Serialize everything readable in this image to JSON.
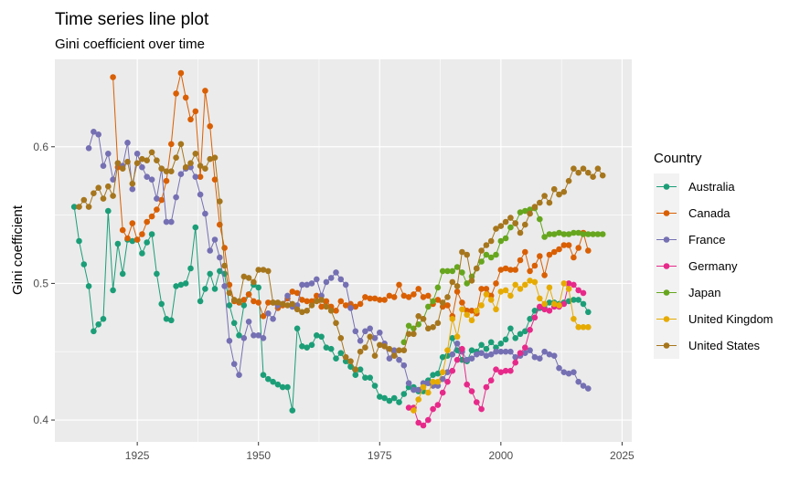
{
  "chart_data": {
    "type": "line",
    "title": "Time series line plot",
    "subtitle": "Gini coefficient over time",
    "xlabel": "",
    "ylabel": "Gini coefficient",
    "xlim": [
      1908,
      2027
    ],
    "ylim": [
      0.384,
      0.664
    ],
    "x_ticks": [
      1925,
      1950,
      1975,
      2000,
      2025
    ],
    "y_ticks": [
      0.4,
      0.5,
      0.6
    ],
    "y_tick_labels": [
      "0.4",
      "0.5",
      "0.6"
    ],
    "grid": true,
    "legend_title": "Country",
    "legend_position": "right",
    "series": [
      {
        "name": "Australia",
        "color": "#1b9e77",
        "x": [
          1912,
          1913,
          1914,
          1915,
          1916,
          1917,
          1918,
          1919,
          1920,
          1921,
          1922,
          1923,
          1924,
          1925,
          1926,
          1927,
          1928,
          1929,
          1930,
          1931,
          1932,
          1933,
          1934,
          1935,
          1936,
          1937,
          1938,
          1939,
          1940,
          1941,
          1942,
          1943,
          1944,
          1945,
          1946,
          1947,
          1948,
          1949,
          1950,
          1951,
          1952,
          1953,
          1954,
          1955,
          1956,
          1957,
          1958,
          1959,
          1960,
          1961,
          1962,
          1963,
          1964,
          1965,
          1966,
          1967,
          1968,
          1969,
          1970,
          1971,
          1972,
          1973,
          1974,
          1975,
          1976,
          1977,
          1978,
          1979,
          1980,
          1981,
          1982,
          1983,
          1984,
          1985,
          1986,
          1987,
          1988,
          1989,
          1990,
          1991,
          1992,
          1993,
          1994,
          1995,
          1996,
          1997,
          1998,
          1999,
          2000,
          2001,
          2002,
          2003,
          2004,
          2005,
          2006,
          2007,
          2008,
          2009,
          2010,
          2011,
          2012,
          2013,
          2014,
          2015,
          2016,
          2017,
          2018
        ],
        "values": [
          0.556,
          0.531,
          0.514,
          0.498,
          0.465,
          0.47,
          0.474,
          0.553,
          0.495,
          0.529,
          0.507,
          0.532,
          0.531,
          0.532,
          0.522,
          0.53,
          0.536,
          0.507,
          0.485,
          0.474,
          0.473,
          0.498,
          0.499,
          0.5,
          0.511,
          0.541,
          0.487,
          0.496,
          0.507,
          0.496,
          0.509,
          0.507,
          0.484,
          0.471,
          0.462,
          0.484,
          0.492,
          0.499,
          0.497,
          0.433,
          0.43,
          0.428,
          0.426,
          0.424,
          0.424,
          0.407,
          0.467,
          0.454,
          0.453,
          0.455,
          0.462,
          0.461,
          0.453,
          0.452,
          0.445,
          0.449,
          0.443,
          0.439,
          0.433,
          0.437,
          0.431,
          0.431,
          0.425,
          0.417,
          0.416,
          0.414,
          0.416,
          0.413,
          0.419,
          0.424,
          0.424,
          0.421,
          0.421,
          0.429,
          0.433,
          0.434,
          0.446,
          0.447,
          0.46,
          0.451,
          0.444,
          0.443,
          0.451,
          0.45,
          0.455,
          0.452,
          0.457,
          0.453,
          0.456,
          0.459,
          0.467,
          0.46,
          0.463,
          0.465,
          0.474,
          0.48,
          0.482,
          0.482,
          0.486,
          0.486,
          0.485,
          0.486,
          0.487,
          0.488,
          0.488,
          0.485,
          0.479
        ]
      },
      {
        "name": "Canada",
        "color": "#d95f02",
        "x": [
          1920,
          1921,
          1922,
          1923,
          1924,
          1925,
          1926,
          1927,
          1928,
          1929,
          1930,
          1931,
          1932,
          1933,
          1934,
          1935,
          1936,
          1937,
          1938,
          1939,
          1940,
          1941,
          1942,
          1943,
          1944,
          1945,
          1946,
          1947,
          1948,
          1949,
          1950,
          1951,
          1952,
          1953,
          1954,
          1955,
          1956,
          1957,
          1958,
          1959,
          1960,
          1961,
          1962,
          1963,
          1964,
          1965,
          1966,
          1967,
          1968,
          1969,
          1970,
          1971,
          1972,
          1973,
          1974,
          1975,
          1976,
          1977,
          1978,
          1979,
          1980,
          1981,
          1982,
          1983,
          1984,
          1985,
          1986,
          1987,
          1988,
          1989,
          1990,
          1991,
          1992,
          1993,
          1994,
          1995,
          1996,
          1997,
          1998,
          1999,
          2000,
          2001,
          2002,
          2003,
          2004,
          2005,
          2006,
          2007,
          2008,
          2009,
          2010,
          2011,
          2012,
          2013,
          2014,
          2015,
          2016,
          2017,
          2018
        ],
        "values": [
          0.651,
          0.585,
          0.539,
          0.533,
          0.544,
          0.532,
          0.536,
          0.545,
          0.549,
          0.554,
          0.561,
          0.575,
          0.602,
          0.639,
          0.654,
          0.636,
          0.62,
          0.626,
          0.578,
          0.641,
          0.615,
          0.576,
          0.543,
          0.526,
          0.499,
          0.487,
          0.486,
          0.488,
          0.492,
          0.487,
          0.486,
          0.476,
          0.486,
          0.486,
          0.482,
          0.484,
          0.489,
          0.494,
          0.493,
          0.488,
          0.487,
          0.487,
          0.491,
          0.483,
          0.487,
          0.483,
          0.48,
          0.487,
          0.484,
          0.485,
          0.483,
          0.485,
          0.49,
          0.489,
          0.489,
          0.488,
          0.488,
          0.491,
          0.49,
          0.499,
          0.491,
          0.49,
          0.492,
          0.496,
          0.49,
          0.491,
          0.485,
          0.488,
          0.483,
          0.484,
          0.476,
          0.494,
          0.486,
          0.48,
          0.48,
          0.478,
          0.496,
          0.496,
          0.491,
          0.5,
          0.51,
          0.511,
          0.51,
          0.51,
          0.517,
          0.523,
          0.509,
          0.513,
          0.52,
          0.506,
          0.521,
          0.523,
          0.525,
          0.528,
          0.528,
          0.519,
          0.526,
          0.537,
          0.524
        ]
      },
      {
        "name": "France",
        "color": "#7570b3",
        "x": [
          1915,
          1916,
          1917,
          1918,
          1919,
          1920,
          1921,
          1922,
          1923,
          1924,
          1925,
          1926,
          1927,
          1928,
          1929,
          1930,
          1931,
          1932,
          1933,
          1934,
          1935,
          1936,
          1937,
          1938,
          1939,
          1940,
          1941,
          1942,
          1943,
          1944,
          1945,
          1946,
          1947,
          1948,
          1949,
          1950,
          1951,
          1952,
          1953,
          1954,
          1955,
          1956,
          1957,
          1958,
          1959,
          1960,
          1961,
          1962,
          1963,
          1964,
          1965,
          1966,
          1967,
          1968,
          1969,
          1970,
          1971,
          1972,
          1973,
          1974,
          1975,
          1976,
          1977,
          1978,
          1979,
          1980,
          1981,
          1982,
          1983,
          1984,
          1985,
          1986,
          1987,
          1988,
          1989,
          1990,
          1991,
          1992,
          1993,
          1994,
          1995,
          1996,
          1997,
          1998,
          1999,
          2000,
          2001,
          2002,
          2003,
          2004,
          2005,
          2006,
          2007,
          2008,
          2009,
          2010,
          2011,
          2012,
          2013,
          2014,
          2015,
          2016,
          2017,
          2018
        ],
        "values": [
          0.599,
          0.611,
          0.609,
          0.586,
          0.595,
          0.576,
          0.588,
          0.586,
          0.603,
          0.569,
          0.595,
          0.585,
          0.578,
          0.576,
          0.562,
          0.584,
          0.545,
          0.545,
          0.563,
          0.58,
          0.584,
          0.585,
          0.578,
          0.565,
          0.551,
          0.524,
          0.532,
          0.519,
          0.498,
          0.458,
          0.441,
          0.433,
          0.46,
          0.472,
          0.462,
          0.462,
          0.46,
          0.478,
          0.474,
          0.484,
          0.485,
          0.491,
          0.483,
          0.484,
          0.499,
          0.499,
          0.5,
          0.503,
          0.491,
          0.501,
          0.504,
          0.508,
          0.503,
          0.499,
          0.482,
          0.465,
          0.458,
          0.465,
          0.467,
          0.46,
          0.464,
          0.456,
          0.445,
          0.451,
          0.444,
          0.44,
          0.427,
          0.422,
          0.422,
          0.427,
          0.427,
          0.425,
          0.425,
          0.43,
          0.435,
          0.448,
          0.456,
          0.45,
          0.444,
          0.445,
          0.448,
          0.449,
          0.447,
          0.448,
          0.45,
          0.45,
          0.45,
          0.45,
          0.446,
          0.447,
          0.449,
          0.451,
          0.446,
          0.445,
          0.45,
          0.448,
          0.447,
          0.438,
          0.435,
          0.434,
          0.435,
          0.428,
          0.425,
          0.423
        ]
      },
      {
        "name": "Germany",
        "color": "#e7298a",
        "x": [
          1981,
          1982,
          1983,
          1984,
          1985,
          1986,
          1987,
          1988,
          1989,
          1990,
          1991,
          1992,
          1993,
          1994,
          1995,
          1996,
          1997,
          1998,
          1999,
          2000,
          2001,
          2002,
          2003,
          2004,
          2005,
          2006,
          2007,
          2008,
          2009,
          2010,
          2011,
          2012,
          2013,
          2014,
          2015,
          2016,
          2017
        ],
        "values": [
          0.409,
          0.409,
          0.398,
          0.396,
          0.4,
          0.408,
          0.411,
          0.42,
          0.428,
          0.436,
          0.444,
          0.452,
          0.426,
          0.421,
          0.413,
          0.408,
          0.424,
          0.429,
          0.437,
          0.435,
          0.436,
          0.436,
          0.442,
          0.449,
          0.453,
          0.466,
          0.475,
          0.483,
          0.481,
          0.48,
          0.483,
          0.483,
          0.485,
          0.5,
          0.499,
          0.495,
          0.493
        ]
      },
      {
        "name": "Japan",
        "color": "#66a61e",
        "x": [
          1980,
          1981,
          1982,
          1983,
          1984,
          1985,
          1986,
          1987,
          1988,
          1989,
          1990,
          1991,
          1992,
          1993,
          1994,
          1995,
          1996,
          1997,
          1998,
          1999,
          2000,
          2001,
          2002,
          2003,
          2004,
          2005,
          2006,
          2007,
          2008,
          2009,
          2010,
          2011,
          2012,
          2013,
          2014,
          2015,
          2016,
          2017,
          2018,
          2019,
          2020,
          2021
        ],
        "values": [
          0.457,
          0.469,
          0.467,
          0.47,
          0.474,
          0.483,
          0.487,
          0.497,
          0.509,
          0.509,
          0.509,
          0.512,
          0.508,
          0.5,
          0.505,
          0.511,
          0.516,
          0.521,
          0.519,
          0.521,
          0.531,
          0.533,
          0.541,
          0.544,
          0.552,
          0.553,
          0.554,
          0.555,
          0.547,
          0.534,
          0.536,
          0.536,
          0.537,
          0.536,
          0.536,
          0.537,
          0.537,
          0.536,
          0.536,
          0.536,
          0.536,
          0.536
        ]
      },
      {
        "name": "United Kingdom",
        "color": "#e6ab02",
        "x": [
          1982,
          1983,
          1984,
          1985,
          1986,
          1987,
          1988,
          1989,
          1990,
          1991,
          1992,
          1993,
          1994,
          1995,
          1996,
          1997,
          1998,
          1999,
          2000,
          2001,
          2002,
          2003,
          2004,
          2005,
          2006,
          2007,
          2008,
          2009,
          2010,
          2011,
          2012,
          2013,
          2014,
          2015,
          2016,
          2017,
          2018
        ],
        "values": [
          0.407,
          0.415,
          0.424,
          0.42,
          0.428,
          0.428,
          0.435,
          0.451,
          0.474,
          0.461,
          0.481,
          0.477,
          0.473,
          0.48,
          0.484,
          0.492,
          0.488,
          0.481,
          0.494,
          0.495,
          0.491,
          0.499,
          0.496,
          0.499,
          0.502,
          0.501,
          0.489,
          0.485,
          0.497,
          0.485,
          0.484,
          0.5,
          0.496,
          0.474,
          0.468,
          0.468,
          0.468
        ]
      },
      {
        "name": "United States",
        "color": "#a6761d",
        "x": [
          1913,
          1914,
          1915,
          1916,
          1917,
          1918,
          1919,
          1920,
          1921,
          1922,
          1923,
          1924,
          1925,
          1926,
          1927,
          1928,
          1929,
          1930,
          1931,
          1932,
          1933,
          1934,
          1935,
          1936,
          1937,
          1938,
          1939,
          1940,
          1941,
          1942,
          1943,
          1944,
          1945,
          1946,
          1947,
          1948,
          1949,
          1950,
          1951,
          1952,
          1953,
          1954,
          1955,
          1956,
          1957,
          1958,
          1959,
          1960,
          1961,
          1962,
          1963,
          1964,
          1965,
          1966,
          1967,
          1968,
          1969,
          1970,
          1971,
          1972,
          1973,
          1974,
          1975,
          1976,
          1977,
          1978,
          1979,
          1980,
          1981,
          1982,
          1983,
          1984,
          1985,
          1986,
          1987,
          1988,
          1989,
          1990,
          1991,
          1992,
          1993,
          1994,
          1995,
          1996,
          1997,
          1998,
          1999,
          2000,
          2001,
          2002,
          2003,
          2004,
          2005,
          2006,
          2007,
          2008,
          2009,
          2010,
          2011,
          2012,
          2013,
          2014,
          2015,
          2016,
          2017,
          2018,
          2019,
          2020,
          2021
        ],
        "values": [
          0.556,
          0.561,
          0.556,
          0.566,
          0.57,
          0.562,
          0.571,
          0.564,
          0.588,
          0.584,
          0.589,
          0.573,
          0.588,
          0.591,
          0.59,
          0.596,
          0.59,
          0.584,
          0.582,
          0.582,
          0.592,
          0.602,
          0.585,
          0.588,
          0.595,
          0.586,
          0.584,
          0.591,
          0.592,
          0.56,
          0.513,
          0.493,
          0.488,
          0.487,
          0.505,
          0.504,
          0.501,
          0.51,
          0.51,
          0.509,
          0.486,
          0.486,
          0.485,
          0.484,
          0.485,
          0.481,
          0.479,
          0.48,
          0.484,
          0.487,
          0.488,
          0.483,
          0.48,
          0.471,
          0.46,
          0.446,
          0.443,
          0.437,
          0.45,
          0.453,
          0.461,
          0.447,
          0.455,
          0.454,
          0.452,
          0.447,
          0.451,
          0.451,
          0.463,
          0.463,
          0.476,
          0.474,
          0.467,
          0.468,
          0.471,
          0.486,
          0.49,
          0.501,
          0.498,
          0.523,
          0.521,
          0.502,
          0.511,
          0.524,
          0.528,
          0.531,
          0.54,
          0.542,
          0.545,
          0.548,
          0.544,
          0.537,
          0.543,
          0.551,
          0.556,
          0.559,
          0.564,
          0.559,
          0.569,
          0.565,
          0.567,
          0.575,
          0.584,
          0.581,
          0.584,
          0.581,
          0.578,
          0.584,
          0.579
        ]
      }
    ]
  }
}
